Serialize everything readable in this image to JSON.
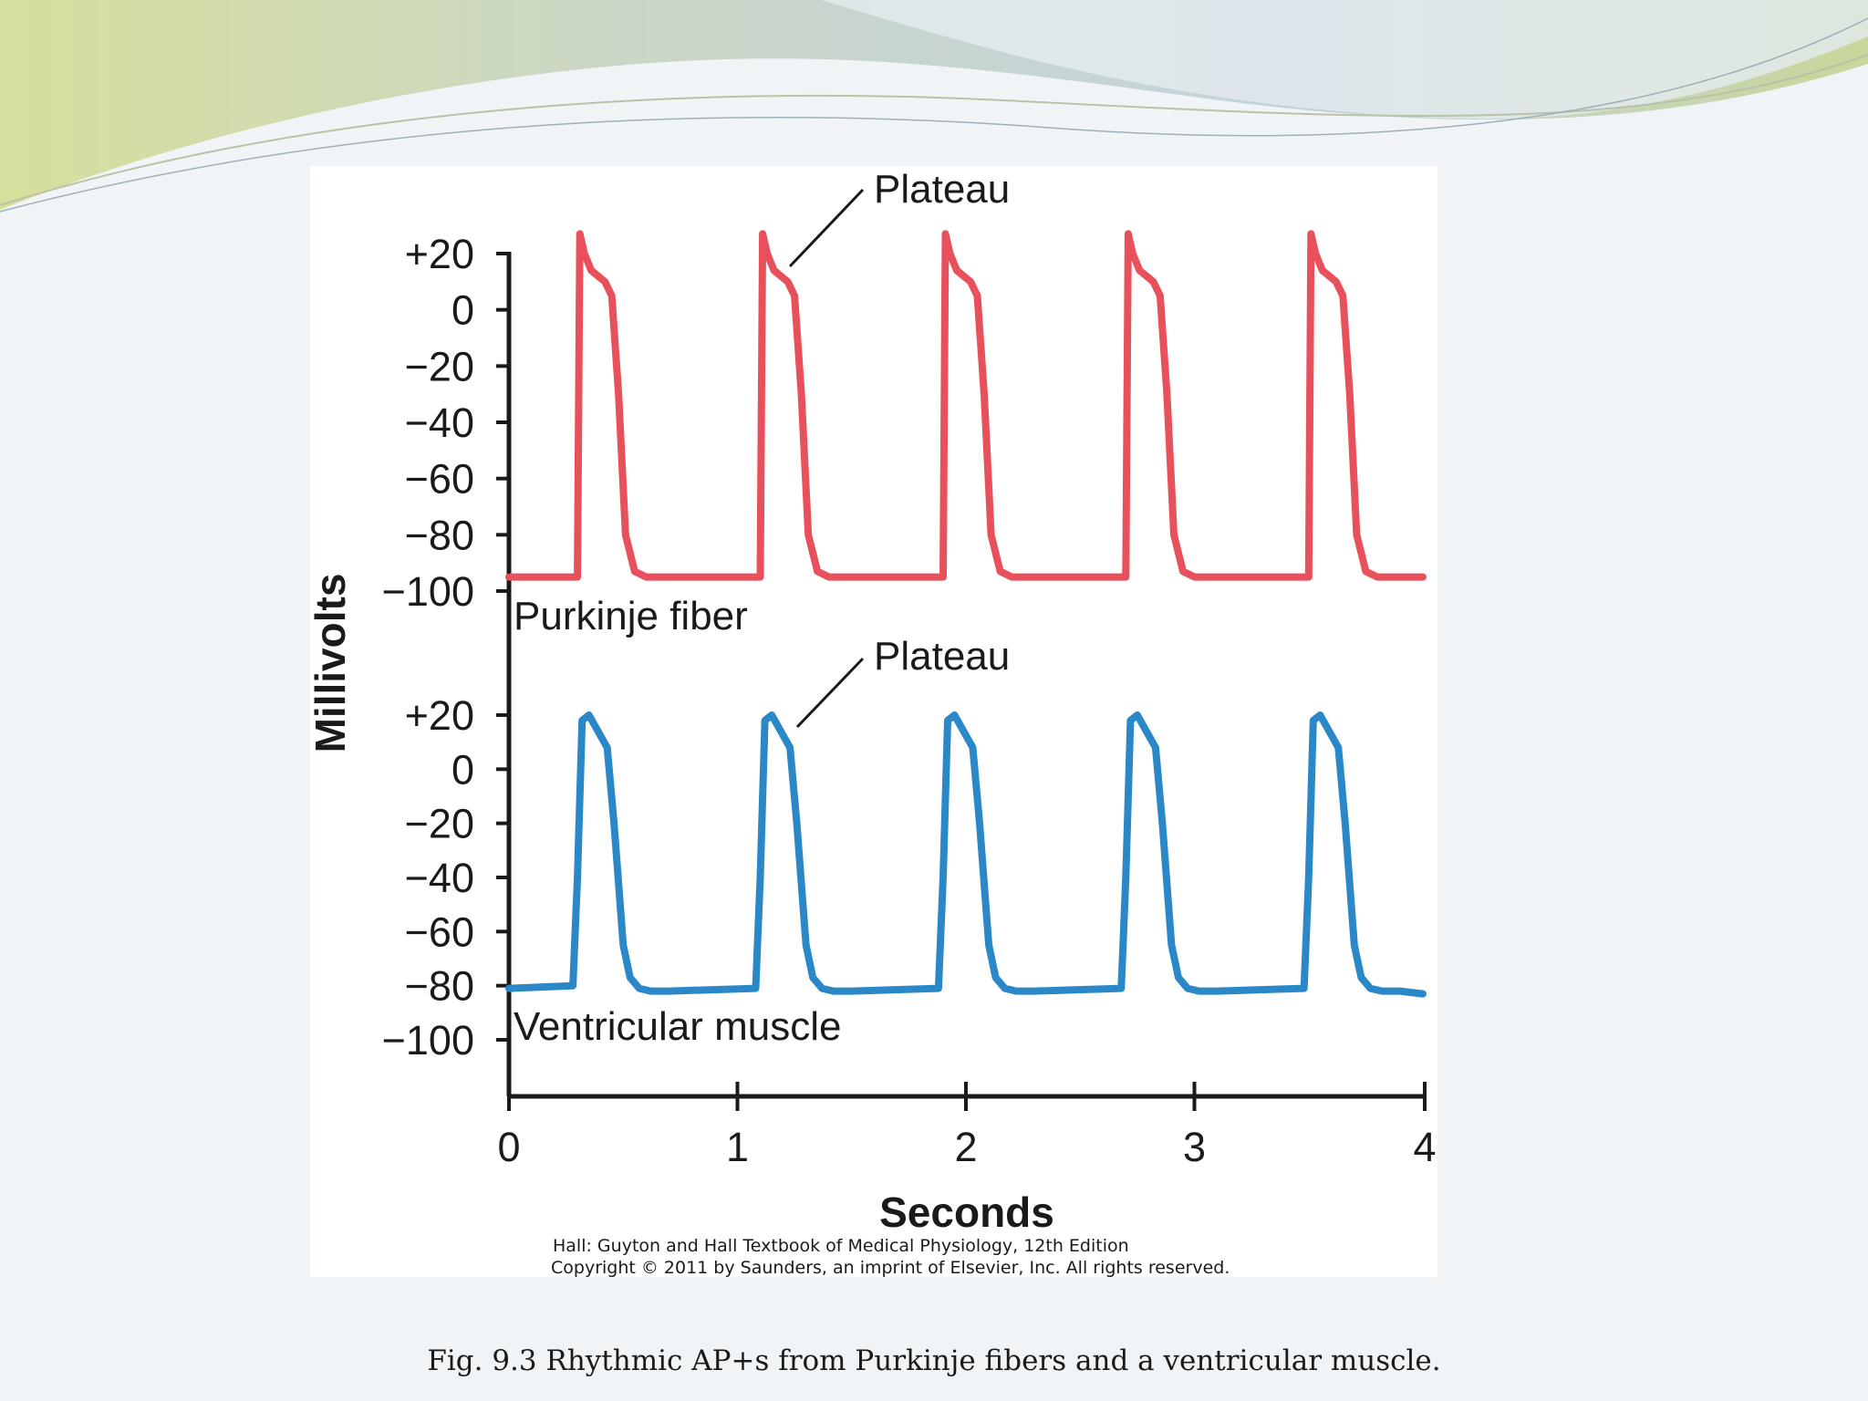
{
  "caption": "Fig. 9.3  Rhythmic AP+s from Purkinje fibers and a ventricular muscle.",
  "credit": {
    "line1": "Hall: Guyton and Hall Textbook of Medical Physiology, 12th Edition",
    "line2": "Copyright © 2011 by Saunders, an imprint of Elsevier, Inc. All rights reserved."
  },
  "chart_data": {
    "type": "line",
    "xlabel": "Seconds",
    "ylabel": "Millivolts",
    "xlim": [
      0,
      4
    ],
    "x_ticks": [
      "0",
      "1",
      "2",
      "3",
      "4"
    ],
    "grid": false,
    "y_ticks": [
      "+20",
      "0",
      "−20",
      "−40",
      "−60",
      "−80",
      "−100"
    ],
    "panels": [
      {
        "name": "Purkinje fiber",
        "color": "#e8505b",
        "ylim": [
          -100,
          20
        ],
        "annotation": "Plateau",
        "resting_mv": -95,
        "peak_mv": 27,
        "upstrokes_s": [
          0.3,
          1.1,
          1.9,
          2.7,
          3.5
        ],
        "ap_duration_s": 0.32,
        "x": [
          0,
          0.3,
          0.31,
          0.33,
          0.36,
          0.42,
          0.45,
          0.48,
          0.51,
          0.55,
          0.6,
          1.1,
          1.11,
          1.13,
          1.16,
          1.22,
          1.25,
          1.28,
          1.31,
          1.35,
          1.4,
          1.9,
          1.91,
          1.93,
          1.96,
          2.02,
          2.05,
          2.08,
          2.11,
          2.15,
          2.2,
          2.7,
          2.71,
          2.73,
          2.76,
          2.82,
          2.85,
          2.88,
          2.91,
          2.95,
          3.0,
          3.5,
          3.51,
          3.53,
          3.56,
          3.62,
          3.65,
          3.68,
          3.71,
          3.75,
          3.8,
          4.0
        ],
        "y": [
          -95,
          -95,
          27,
          20,
          14,
          10,
          5,
          -30,
          -80,
          -93,
          -95,
          -95,
          27,
          20,
          14,
          10,
          5,
          -30,
          -80,
          -93,
          -95,
          -95,
          27,
          20,
          14,
          10,
          5,
          -30,
          -80,
          -93,
          -95,
          -95,
          27,
          20,
          14,
          10,
          5,
          -30,
          -80,
          -93,
          -95,
          -95,
          27,
          20,
          14,
          10,
          5,
          -30,
          -80,
          -93,
          -95,
          -95
        ]
      },
      {
        "name": "Ventricular muscle",
        "color": "#2b88c8",
        "ylim": [
          -100,
          20
        ],
        "annotation": "Plateau",
        "resting_mv": -82,
        "peak_mv": 20,
        "upstrokes_s": [
          0.3,
          1.1,
          1.9,
          2.7,
          3.5
        ],
        "ap_duration_s": 0.28,
        "x": [
          0,
          0.28,
          0.3,
          0.32,
          0.35,
          0.39,
          0.43,
          0.46,
          0.5,
          0.53,
          0.57,
          0.62,
          0.7,
          1.08,
          1.1,
          1.12,
          1.15,
          1.19,
          1.23,
          1.26,
          1.3,
          1.33,
          1.37,
          1.42,
          1.5,
          1.88,
          1.9,
          1.92,
          1.95,
          1.99,
          2.03,
          2.06,
          2.1,
          2.13,
          2.17,
          2.22,
          2.3,
          2.68,
          2.7,
          2.72,
          2.75,
          2.79,
          2.83,
          2.86,
          2.9,
          2.93,
          2.97,
          3.02,
          3.1,
          3.48,
          3.5,
          3.52,
          3.55,
          3.59,
          3.63,
          3.66,
          3.7,
          3.73,
          3.77,
          3.82,
          3.9,
          4.0
        ],
        "y": [
          -81,
          -80,
          -40,
          18,
          20,
          14,
          8,
          -20,
          -65,
          -77,
          -81,
          -82,
          -82,
          -81,
          -40,
          18,
          20,
          14,
          8,
          -20,
          -65,
          -77,
          -81,
          -82,
          -82,
          -81,
          -40,
          18,
          20,
          14,
          8,
          -20,
          -65,
          -77,
          -81,
          -82,
          -82,
          -81,
          -40,
          18,
          20,
          14,
          8,
          -20,
          -65,
          -77,
          -81,
          -82,
          -82,
          -81,
          -40,
          18,
          20,
          14,
          8,
          -20,
          -65,
          -77,
          -81,
          -82,
          -82,
          -83
        ]
      }
    ]
  }
}
